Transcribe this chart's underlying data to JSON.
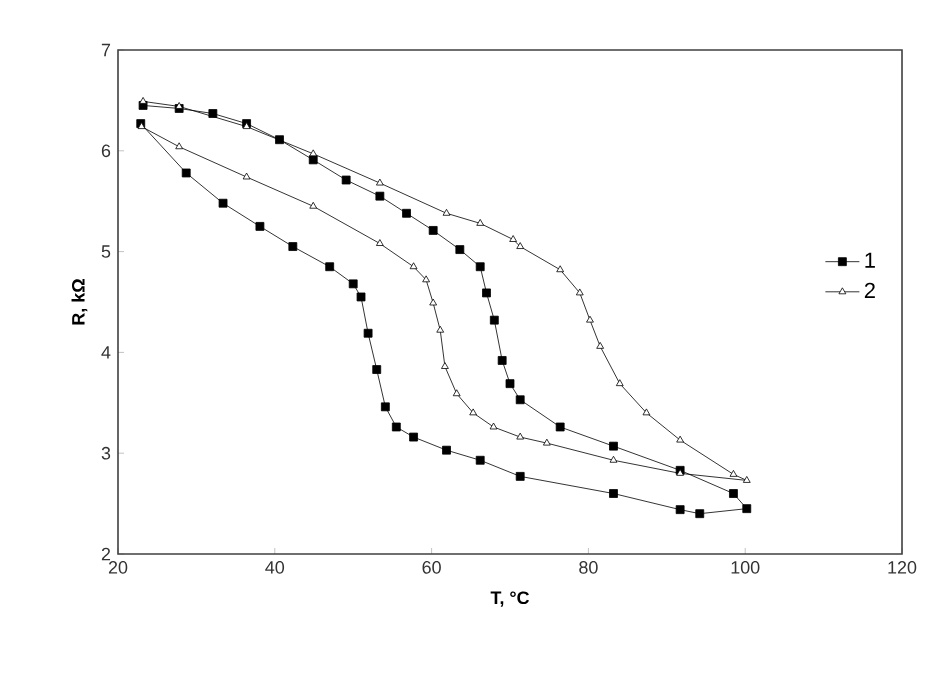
{
  "chart_data": {
    "type": "line",
    "xlabel": "T, °C",
    "ylabel": "R, kΩ",
    "xlim": [
      20,
      120
    ],
    "xticks": [
      20,
      40,
      60,
      80,
      100,
      120
    ],
    "ylim": [
      2,
      7
    ],
    "yticks": [
      2,
      3,
      4,
      5,
      6,
      7
    ],
    "legend": "right",
    "grid": false,
    "line_style": "solid",
    "series": [
      {
        "name": "1",
        "color": "#000000",
        "marker": "square",
        "x": [
          22.9,
          28.7,
          33.4,
          38.1,
          42.3,
          47.0,
          50.0,
          51.0,
          51.9,
          53.0,
          54.1,
          55.5,
          57.7,
          61.9,
          66.2,
          71.3,
          83.2,
          91.7,
          94.2,
          100.2,
          98.5,
          91.7,
          83.2,
          76.4,
          71.3,
          70.0,
          69.0,
          68.0,
          67.0,
          66.2,
          63.6,
          60.2,
          56.8,
          53.4,
          49.1,
          44.9,
          40.6,
          36.4,
          32.1,
          27.8,
          23.2
        ],
        "values": [
          6.27,
          5.78,
          5.48,
          5.25,
          5.05,
          4.85,
          4.68,
          4.55,
          4.19,
          3.83,
          3.46,
          3.26,
          3.16,
          3.03,
          2.93,
          2.77,
          2.6,
          2.44,
          2.4,
          2.45,
          2.6,
          2.83,
          3.07,
          3.26,
          3.53,
          3.69,
          3.92,
          4.32,
          4.59,
          4.85,
          5.02,
          5.21,
          5.38,
          5.55,
          5.71,
          5.91,
          6.11,
          6.27,
          6.37,
          6.42,
          6.45
        ]
      },
      {
        "name": "2",
        "color": "#000000",
        "marker": "triangle",
        "x": [
          23.0,
          27.8,
          36.4,
          44.9,
          53.4,
          57.7,
          59.3,
          60.2,
          61.1,
          61.7,
          63.2,
          65.3,
          67.9,
          71.3,
          74.7,
          83.2,
          91.7,
          100.2,
          98.5,
          91.7,
          87.4,
          84.0,
          81.5,
          80.2,
          78.9,
          76.4,
          71.3,
          70.4,
          66.2,
          61.9,
          53.4,
          44.9,
          36.4,
          27.8,
          23.2
        ],
        "values": [
          6.24,
          6.04,
          5.74,
          5.45,
          5.08,
          4.85,
          4.72,
          4.49,
          4.22,
          3.86,
          3.59,
          3.4,
          3.26,
          3.16,
          3.1,
          2.93,
          2.8,
          2.73,
          2.79,
          3.13,
          3.4,
          3.69,
          4.06,
          4.32,
          4.59,
          4.82,
          5.05,
          5.12,
          5.28,
          5.38,
          5.68,
          5.97,
          6.24,
          6.44,
          6.49
        ]
      }
    ]
  }
}
